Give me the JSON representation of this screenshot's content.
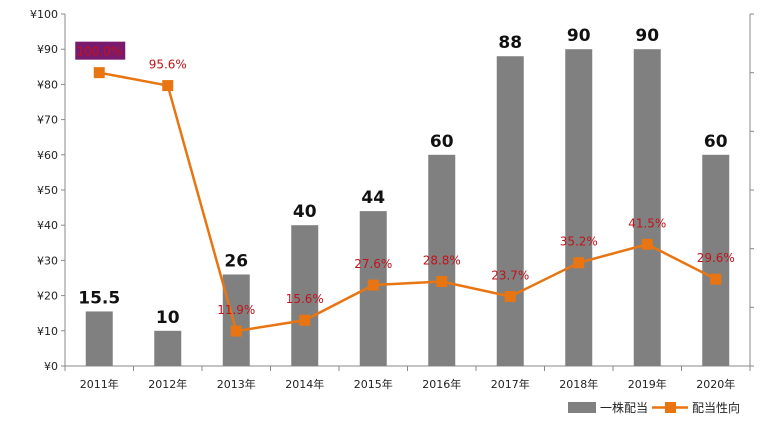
{
  "chart_data": {
    "type": "bar",
    "categories": [
      "2011年",
      "2012年",
      "2013年",
      "2014年",
      "2015年",
      "2016年",
      "2017年",
      "2018年",
      "2019年",
      "2020年"
    ],
    "ylim": [
      0,
      100
    ],
    "y_ticks": [
      "¥0",
      "¥10",
      "¥20",
      "¥30",
      "¥40",
      "¥50",
      "¥60",
      "¥70",
      "¥80",
      "¥90",
      "¥100"
    ],
    "y2lim": [
      0,
      120
    ],
    "grid": false,
    "legend_position": "bottom-right",
    "series": [
      {
        "name": "一株配当",
        "type": "bar",
        "color": "#808080",
        "values": [
          15.5,
          10,
          26,
          40,
          44,
          60,
          88,
          90,
          90,
          60
        ],
        "labels": [
          "15.5",
          "10",
          "26",
          "40",
          "44",
          "60",
          "88",
          "90",
          "90",
          "60"
        ]
      },
      {
        "name": "配当性向",
        "type": "line",
        "axis": "secondary",
        "color": "#e87511",
        "values": [
          100.0,
          95.6,
          11.9,
          15.6,
          27.6,
          28.8,
          23.7,
          35.2,
          41.5,
          29.6
        ],
        "labels": [
          "100.0%",
          "95.6%",
          "11.9%",
          "15.6%",
          "27.6%",
          "28.8%",
          "23.7%",
          "35.2%",
          "41.5%",
          "29.6%"
        ]
      }
    ],
    "highlight_label_bg": "#7a1a6e",
    "label_color": "#c0131a"
  }
}
